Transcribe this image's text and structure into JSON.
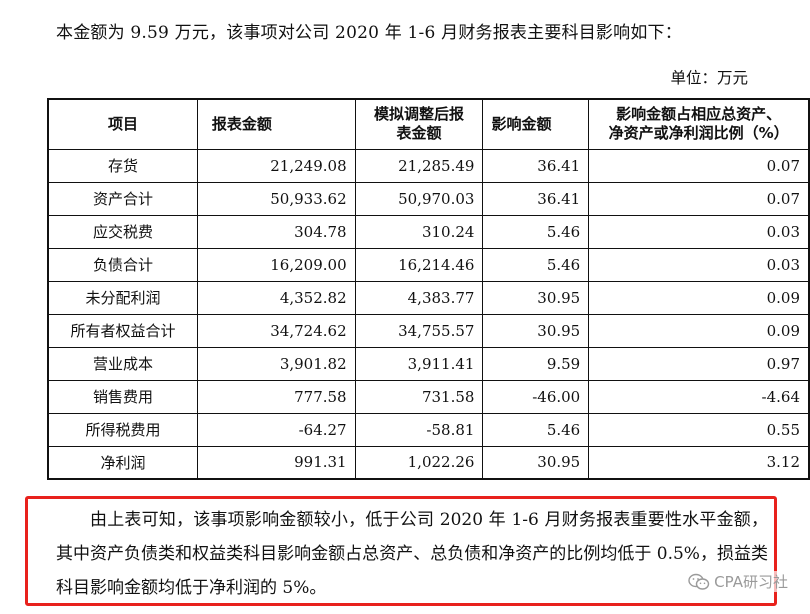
{
  "intro_text": "本金额为 9.59 万元，该事项对公司 2020 年 1-6 月财务报表主要科目影响如下：",
  "unit_label": "单位：万元",
  "table": {
    "headers": [
      "项目",
      "报表金额",
      "模拟调整后报表金额",
      "影响金额",
      "影响金额占相应总资产、净资产或净利润比例（%）"
    ],
    "header_lines": {
      "col3": [
        "模拟调整后报",
        "表金额"
      ],
      "col5": [
        "影响金额占相应总资产、",
        "净资产或净利润比例（%）"
      ]
    },
    "rows": [
      {
        "item": "存货",
        "reported": "21,249.08",
        "adjusted": "21,285.49",
        "impact": "36.41",
        "ratio": "0.07"
      },
      {
        "item": "资产合计",
        "reported": "50,933.62",
        "adjusted": "50,970.03",
        "impact": "36.41",
        "ratio": "0.07"
      },
      {
        "item": "应交税费",
        "reported": "304.78",
        "adjusted": "310.24",
        "impact": "5.46",
        "ratio": "0.03"
      },
      {
        "item": "负债合计",
        "reported": "16,209.00",
        "adjusted": "16,214.46",
        "impact": "5.46",
        "ratio": "0.03"
      },
      {
        "item": "未分配利润",
        "reported": "4,352.82",
        "adjusted": "4,383.77",
        "impact": "30.95",
        "ratio": "0.09"
      },
      {
        "item": "所有者权益合计",
        "reported": "34,724.62",
        "adjusted": "34,755.57",
        "impact": "30.95",
        "ratio": "0.09"
      },
      {
        "item": "营业成本",
        "reported": "3,901.82",
        "adjusted": "3,911.41",
        "impact": "9.59",
        "ratio": "0.97"
      },
      {
        "item": "销售费用",
        "reported": "777.58",
        "adjusted": "731.58",
        "impact": "-46.00",
        "ratio": "-4.64"
      },
      {
        "item": "所得税费用",
        "reported": "-64.27",
        "adjusted": "-58.81",
        "impact": "5.46",
        "ratio": "0.55"
      },
      {
        "item": "净利润",
        "reported": "991.31",
        "adjusted": "1,022.26",
        "impact": "30.95",
        "ratio": "3.12"
      }
    ]
  },
  "conclusion_text": "由上表可知，该事项影响金额较小，低于公司 2020 年 1-6 月财务报表重要性水平金额，其中资产负债类和权益类科目影响金额占总资产、总负债和净资产的比例均低于 0.5%，损益类科目影响金额均低于净利润的 5%。",
  "highlight_color": "#e8211c",
  "watermark": {
    "icon": "wechat-icon",
    "text": "CPA研习社"
  }
}
